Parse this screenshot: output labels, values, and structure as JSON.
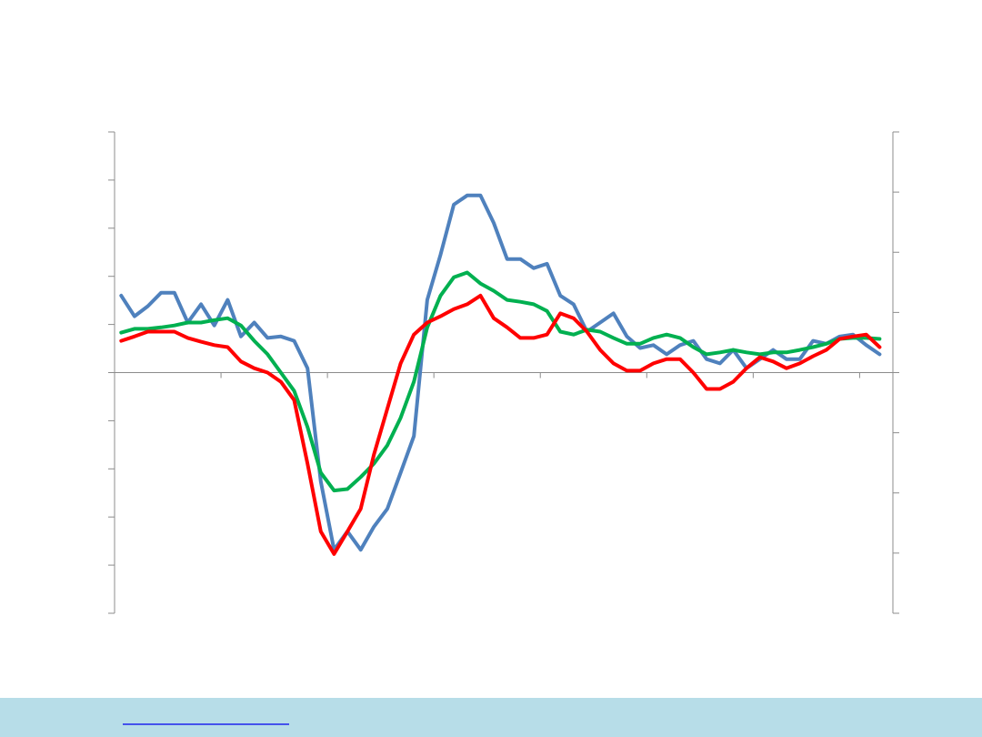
{
  "chart_data": {
    "type": "line",
    "x": [
      1,
      3,
      5,
      7,
      9,
      11,
      13,
      15,
      17,
      19,
      21,
      23,
      25,
      27,
      29,
      31,
      33,
      35,
      37,
      39,
      41,
      43,
      45,
      47,
      49,
      51,
      53,
      55,
      57,
      59,
      61,
      63,
      65,
      67,
      69,
      71,
      73,
      75,
      77,
      79,
      81,
      83,
      85,
      87,
      89,
      91,
      93,
      95,
      97,
      99,
      101,
      103,
      105,
      107,
      109,
      111,
      113,
      115
    ],
    "xlim": [
      0,
      117
    ],
    "xticks": [
      0,
      16,
      32,
      48,
      64,
      80,
      96,
      112
    ],
    "ylim": [
      -5,
      5
    ],
    "yticks": [
      -5,
      -4,
      -3,
      -2,
      -1,
      0,
      1,
      2,
      3,
      4,
      5
    ],
    "y2lim": [
      -4,
      4
    ],
    "y2ticks": [
      -4,
      -3,
      -2,
      -1,
      0,
      1,
      2,
      3,
      4
    ],
    "series": [
      {
        "color": "#4f81bd",
        "values": [
          1.6,
          1.17,
          1.38,
          1.66,
          1.66,
          1.04,
          1.42,
          0.98,
          1.51,
          0.75,
          1.04,
          0.72,
          0.75,
          0.66,
          0.09,
          -2.26,
          -3.68,
          -3.3,
          -3.68,
          -3.2,
          -2.83,
          -2.08,
          -1.32,
          1.51,
          2.45,
          3.49,
          3.68,
          3.68,
          3.11,
          2.36,
          2.36,
          2.17,
          2.26,
          1.6,
          1.42,
          0.85,
          1.04,
          1.23,
          0.75,
          0.51,
          0.57,
          0.38,
          0.57,
          0.66,
          0.28,
          0.19,
          0.47,
          0.09,
          0.28,
          0.47,
          0.28,
          0.28,
          0.66,
          0.6,
          0.75,
          0.79,
          0.57,
          0.38
        ]
      },
      {
        "color": "#00b050",
        "values": [
          0.83,
          0.91,
          0.91,
          0.94,
          0.98,
          1.04,
          1.04,
          1.09,
          1.13,
          0.98,
          0.66,
          0.38,
          0,
          -0.38,
          -1.13,
          -2.08,
          -2.45,
          -2.42,
          -2.17,
          -1.89,
          -1.51,
          -0.94,
          -0.19,
          0.94,
          1.6,
          1.98,
          2.08,
          1.85,
          1.7,
          1.51,
          1.47,
          1.42,
          1.28,
          0.85,
          0.79,
          0.89,
          0.85,
          0.72,
          0.6,
          0.6,
          0.72,
          0.79,
          0.72,
          0.53,
          0.38,
          0.42,
          0.47,
          0.42,
          0.38,
          0.42,
          0.42,
          0.47,
          0.53,
          0.6,
          0.7,
          0.72,
          0.72,
          0.7
        ]
      },
      {
        "color": "#ff0000",
        "values": [
          0.66,
          0.75,
          0.85,
          0.85,
          0.85,
          0.72,
          0.64,
          0.57,
          0.53,
          0.23,
          0.09,
          0,
          -0.19,
          -0.57,
          -1.89,
          -3.3,
          -3.77,
          -3.3,
          -2.83,
          -1.7,
          -0.75,
          0.19,
          0.79,
          1.04,
          1.17,
          1.32,
          1.42,
          1.6,
          1.13,
          0.94,
          0.72,
          0.72,
          0.79,
          1.23,
          1.13,
          0.85,
          0.47,
          0.19,
          0.04,
          0.04,
          0.19,
          0.28,
          0.28,
          0,
          -0.34,
          -0.34,
          -0.19,
          0.09,
          0.32,
          0.23,
          0.09,
          0.19,
          0.34,
          0.47,
          0.7,
          0.75,
          0.79,
          0.53
        ]
      }
    ]
  }
}
